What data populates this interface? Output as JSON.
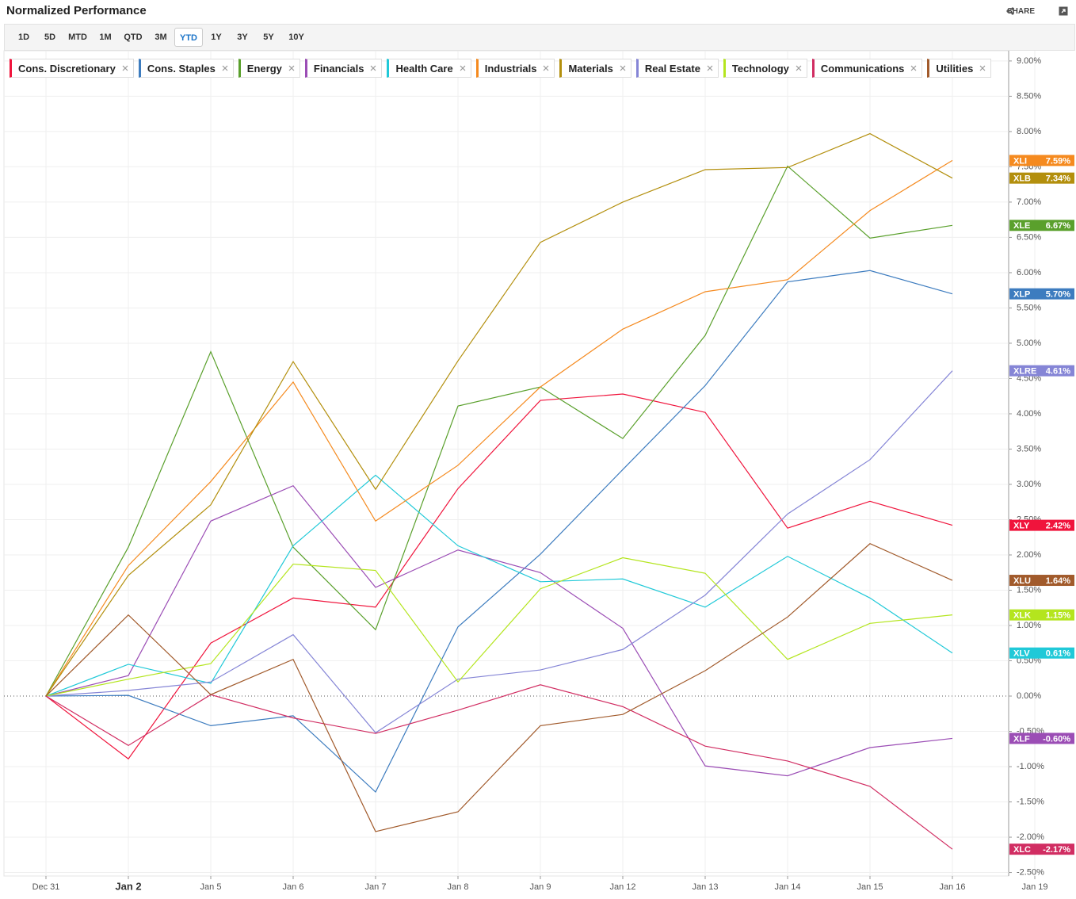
{
  "header": {
    "title": "Normalized Performance",
    "share": "SHARE"
  },
  "ranges": {
    "buttons": [
      "1D",
      "5D",
      "MTD",
      "1M",
      "QTD",
      "3M",
      "YTD",
      "1Y",
      "3Y",
      "5Y",
      "10Y"
    ],
    "active": "YTD"
  },
  "chart_data": {
    "type": "line",
    "categories": [
      "Dec 31",
      "Jan 2",
      "Jan 5",
      "Jan 6",
      "Jan 7",
      "Jan 8",
      "Jan 9",
      "Jan 12",
      "Jan 13",
      "Jan 14",
      "Jan 15",
      "Jan 16",
      "Jan 19"
    ],
    "ylim": [
      -2.55,
      9.1
    ],
    "yticks": [
      {
        "value": -2.5,
        "label": "-2.50%"
      },
      {
        "value": -2,
        "label": "-2.00%"
      },
      {
        "value": -1.5,
        "label": "-1.50%"
      },
      {
        "value": -1,
        "label": "-1.00%"
      },
      {
        "value": -0.5,
        "label": "-0.50%"
      },
      {
        "value": 0,
        "label": "0.00%"
      },
      {
        "value": 0.5,
        "label": "0.50%"
      },
      {
        "value": 1,
        "label": "1.00%"
      },
      {
        "value": 1.5,
        "label": "1.50%"
      },
      {
        "value": 2,
        "label": "2.00%"
      },
      {
        "value": 2.5,
        "label": "2.50%"
      },
      {
        "value": 3,
        "label": "3.00%"
      },
      {
        "value": 3.5,
        "label": "3.50%"
      },
      {
        "value": 4,
        "label": "4.00%"
      },
      {
        "value": 4.5,
        "label": "4.50%"
      },
      {
        "value": 5,
        "label": "5.00%"
      },
      {
        "value": 5.5,
        "label": "5.50%"
      },
      {
        "value": 6,
        "label": "6.00%"
      },
      {
        "value": 6.5,
        "label": "6.50%"
      },
      {
        "value": 7,
        "label": "7.00%"
      },
      {
        "value": 7.5,
        "label": "7.50%"
      },
      {
        "value": 8,
        "label": "8.00%"
      },
      {
        "value": 8.5,
        "label": "8.50%"
      },
      {
        "value": 9,
        "label": "9.00%"
      }
    ],
    "grid": true,
    "series": [
      {
        "name": "Cons. Discretionary",
        "ticker": "XLY",
        "end_label": "2.42%",
        "color": "#f0143c",
        "values": [
          0,
          -0.89,
          0.75,
          1.39,
          1.26,
          2.94,
          4.19,
          4.28,
          4.02,
          2.38,
          2.76,
          2.42,
          null
        ]
      },
      {
        "name": "Cons. Staples",
        "ticker": "XLP",
        "end_label": "5.70%",
        "color": "#3d7cbf",
        "values": [
          0,
          0.01,
          -0.42,
          -0.28,
          -1.36,
          0.98,
          2.01,
          3.21,
          4.4,
          5.87,
          6.03,
          5.7,
          null
        ]
      },
      {
        "name": "Energy",
        "ticker": "XLE",
        "end_label": "6.67%",
        "color": "#5aa02c",
        "values": [
          0,
          2.11,
          4.88,
          2.11,
          0.94,
          4.11,
          4.38,
          3.65,
          5.11,
          7.51,
          6.49,
          6.67,
          null
        ]
      },
      {
        "name": "Financials",
        "ticker": "XLF",
        "end_label": "-0.60%",
        "color": "#9b4db5",
        "values": [
          0,
          0.29,
          2.48,
          2.98,
          1.54,
          2.07,
          1.75,
          0.96,
          -0.99,
          -1.13,
          -0.73,
          -0.6,
          null
        ]
      },
      {
        "name": "Health Care",
        "ticker": "XLV",
        "end_label": "0.61%",
        "color": "#20c9d8",
        "values": [
          0,
          0.45,
          0.18,
          2.13,
          3.13,
          2.13,
          1.62,
          1.66,
          1.26,
          1.98,
          1.39,
          0.61,
          null
        ]
      },
      {
        "name": "Industrials",
        "ticker": "XLI",
        "end_label": "7.59%",
        "color": "#f58a1f",
        "values": [
          0,
          1.85,
          3.04,
          4.45,
          2.48,
          3.27,
          4.38,
          5.2,
          5.73,
          5.9,
          6.88,
          7.59,
          null
        ]
      },
      {
        "name": "Materials",
        "ticker": "XLB",
        "end_label": "7.34%",
        "color": "#b38f0d",
        "values": [
          0,
          1.71,
          2.71,
          4.74,
          2.93,
          4.75,
          6.43,
          7.0,
          7.46,
          7.49,
          7.97,
          7.34,
          null
        ]
      },
      {
        "name": "Real Estate",
        "ticker": "XLRE",
        "end_label": "4.61%",
        "color": "#8585d6",
        "values": [
          0,
          0.08,
          0.2,
          0.87,
          -0.52,
          0.24,
          0.37,
          0.66,
          1.43,
          2.58,
          3.35,
          4.61,
          null
        ]
      },
      {
        "name": "Technology",
        "ticker": "XLK",
        "end_label": "1.15%",
        "color": "#b4e51e",
        "values": [
          0,
          0.24,
          0.46,
          1.87,
          1.78,
          0.2,
          1.52,
          1.96,
          1.74,
          0.52,
          1.03,
          1.15,
          null
        ]
      },
      {
        "name": "Communications",
        "ticker": "XLC",
        "end_label": "-2.17%",
        "color": "#d12d62",
        "values": [
          0,
          -0.7,
          0.02,
          -0.31,
          -0.53,
          -0.2,
          0.16,
          -0.15,
          -0.71,
          -0.92,
          -1.28,
          -2.17,
          null
        ]
      },
      {
        "name": "Utilities",
        "ticker": "XLU",
        "end_label": "1.64%",
        "color": "#a15a2b",
        "values": [
          0,
          1.15,
          0.02,
          0.52,
          -1.92,
          -1.64,
          -0.42,
          -0.26,
          0.36,
          1.12,
          2.16,
          1.64,
          null
        ]
      }
    ]
  }
}
